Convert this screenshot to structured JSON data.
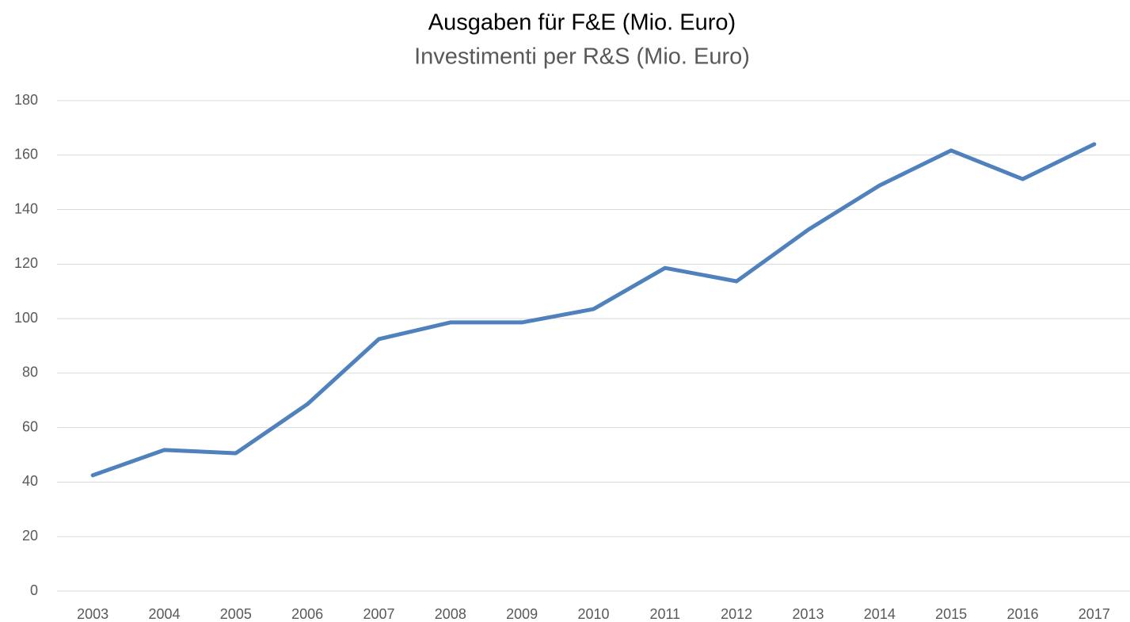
{
  "chart_data": {
    "type": "line",
    "title": "Ausgaben für F&E (Mio. Euro)",
    "subtitle": "Investimenti per R&S (Mio. Euro)",
    "categories": [
      "2003",
      "2004",
      "2005",
      "2006",
      "2007",
      "2008",
      "2009",
      "2010",
      "2011",
      "2012",
      "2013",
      "2014",
      "2015",
      "2016",
      "2017"
    ],
    "series": [
      {
        "name": "Ausgaben für F&E",
        "color": "#4f81bd",
        "values": [
          42.5,
          51.8,
          50.6,
          68.6,
          92.5,
          98.6,
          98.6,
          103.5,
          118.6,
          113.7,
          132.6,
          148.9,
          161.7,
          151.2,
          164
        ]
      }
    ],
    "ylim": [
      0,
      180
    ],
    "yticks": [
      0,
      20,
      40,
      60,
      80,
      100,
      120,
      140,
      160,
      180
    ],
    "grid": true
  }
}
